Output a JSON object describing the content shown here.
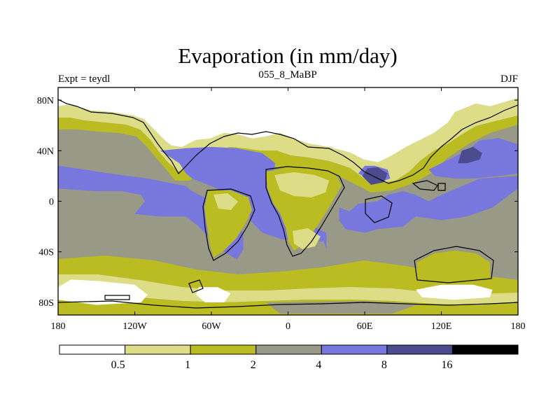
{
  "chart_data": {
    "type": "heatmap",
    "title": "Evaporation (in mm/day)",
    "left_string": "Expt = teydl",
    "center_string": "055_8_MaBP",
    "right_string": "DJF",
    "xlim": [
      -180,
      180
    ],
    "ylim": [
      -90,
      90
    ],
    "x_ticks": [
      {
        "value": -180,
        "label": "180"
      },
      {
        "value": -120,
        "label": "120W"
      },
      {
        "value": -60,
        "label": "60W"
      },
      {
        "value": 0,
        "label": "0"
      },
      {
        "value": 60,
        "label": "60E"
      },
      {
        "value": 120,
        "label": "120E"
      },
      {
        "value": 180,
        "label": "180"
      }
    ],
    "y_ticks": [
      {
        "value": 80,
        "label": "80N"
      },
      {
        "value": 40,
        "label": "40N"
      },
      {
        "value": 0,
        "label": "0"
      },
      {
        "value": -40,
        "label": "40S"
      },
      {
        "value": -80,
        "label": "80S"
      }
    ],
    "colorbar": {
      "levels": [
        "0.5",
        "1",
        "2",
        "4",
        "8",
        "16"
      ],
      "colors": [
        "#ffffff",
        "#dddd88",
        "#bbbb22",
        "#999988",
        "#7777dd",
        "#4b4b8f",
        "#000000"
      ]
    },
    "fields": [
      {
        "name": "pacific-ocean",
        "color": "#7777dd",
        "lon": [
          -180,
          -180,
          -150,
          -130,
          -115,
          -112,
          -120,
          -100,
          -80,
          -70,
          -60,
          -50,
          -40,
          -35,
          -35,
          -50,
          -75,
          -80,
          -95,
          -110,
          -140,
          -165,
          -180
        ],
        "lat": [
          28,
          10,
          8,
          8,
          5,
          0,
          -10,
          -12,
          -12,
          -20,
          -30,
          -40,
          -46,
          -38,
          -25,
          -5,
          8,
          12,
          15,
          18,
          22,
          26,
          28
        ]
      },
      {
        "name": "atlantic-ocean",
        "color": "#7777dd",
        "lon": [
          -100,
          -80,
          -60,
          -40,
          -20,
          -10,
          -12,
          -5,
          10,
          15,
          20,
          30,
          30,
          28,
          -5,
          -20,
          -30,
          -30,
          -45,
          -60,
          -75,
          -80,
          -85
        ],
        "lat": [
          40,
          42,
          43,
          42,
          38,
          30,
          20,
          0,
          -5,
          -10,
          -20,
          -25,
          -38,
          -32,
          -30,
          -25,
          -15,
          -5,
          5,
          12,
          18,
          22,
          30
        ]
      },
      {
        "name": "indian-ocean",
        "color": "#7777dd",
        "lon": [
          40,
          48,
          55,
          70,
          78,
          90,
          100,
          110,
          120,
          150,
          180,
          180,
          160,
          140,
          120,
          100,
          90,
          70,
          60,
          45,
          40
        ],
        "lat": [
          -5,
          -8,
          -2,
          0,
          5,
          8,
          5,
          0,
          5,
          18,
          20,
          10,
          -5,
          -12,
          -15,
          -12,
          -20,
          -22,
          -25,
          -22,
          -15
        ]
      },
      {
        "name": "north-pacific-west",
        "color": "#7777dd",
        "lon": [
          110,
          120,
          130,
          140,
          150,
          165,
          180,
          180,
          165,
          145,
          130,
          115,
          110
        ],
        "lat": [
          25,
          30,
          35,
          40,
          48,
          50,
          45,
          22,
          20,
          18,
          18,
          20,
          25
        ]
      },
      {
        "name": "mediterranean-warm",
        "color": "#7777dd",
        "lon": [
          55,
          60,
          68,
          78,
          80,
          72,
          62,
          55
        ],
        "lat": [
          22,
          28,
          28,
          25,
          18,
          15,
          18,
          22
        ]
      },
      {
        "name": "dark-kuroshio",
        "color": "#4b4b8f",
        "lon": [
          133,
          136,
          145,
          152,
          150,
          140,
          133
        ],
        "lat": [
          30,
          40,
          43,
          38,
          33,
          30,
          30
        ]
      },
      {
        "name": "dark-arabian",
        "color": "#4b4b8f",
        "lon": [
          58,
          62,
          70,
          78,
          75,
          65,
          58
        ],
        "lat": [
          20,
          26,
          27,
          22,
          15,
          13,
          20
        ]
      },
      {
        "name": "antarctic-white-1",
        "color": "#ffffff",
        "lon": [
          -180,
          -170,
          -150,
          -120,
          -110,
          -115,
          -150,
          -180
        ],
        "lat": [
          -68,
          -62,
          -63,
          -66,
          -74,
          -80,
          -82,
          -78
        ]
      },
      {
        "name": "antarctic-white-2",
        "color": "#ffffff",
        "lon": [
          -70,
          -55,
          -45,
          -50,
          -65,
          -72
        ],
        "lat": [
          -68,
          -68,
          -73,
          -80,
          -80,
          -74
        ]
      },
      {
        "name": "antarctic-white-3",
        "color": "#ffffff",
        "lon": [
          100,
          120,
          145,
          160,
          158,
          130,
          105
        ],
        "lat": [
          -70,
          -66,
          -66,
          -70,
          -76,
          -78,
          -76
        ]
      }
    ]
  }
}
